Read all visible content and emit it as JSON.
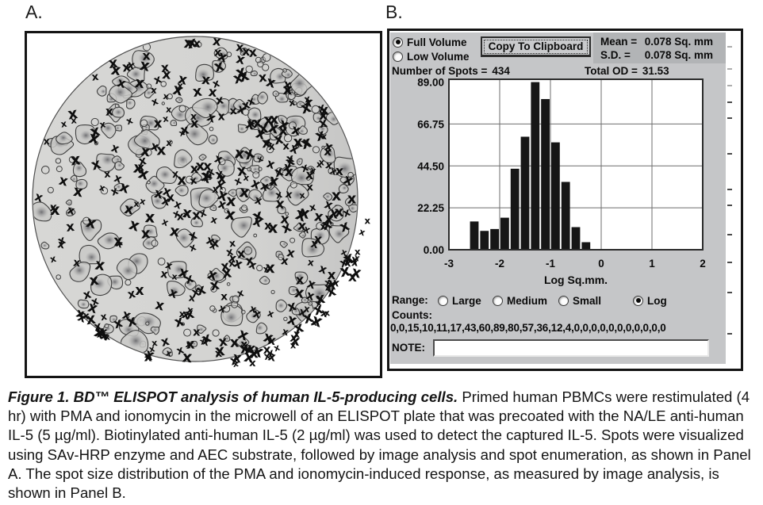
{
  "panels": {
    "a_label": "A.",
    "b_label": "B."
  },
  "panel_a": {
    "well": {
      "seed": 77,
      "blob_count": 175,
      "ring_count": 85,
      "xmark_count": 310,
      "edge_xmark_count": 48,
      "edge_xmark_left_count": 14,
      "circle_fill": "#d7d7d5",
      "circle_stroke": "#4f4f4f",
      "blob_fill": "#c9c9c7",
      "blob_stroke": "#3f3f3f",
      "core_color": "#5f5f63",
      "xmark_color": "#0e0e0e"
    }
  },
  "panel_b": {
    "dialog_bg": "#c5c6c8",
    "volume_radios": [
      {
        "label": "Full Volume",
        "selected": true
      },
      {
        "label": "Low Volume",
        "selected": false
      }
    ],
    "copy_button": "Copy To Clipboard",
    "stats": {
      "mean_label": "Mean =",
      "mean_value": "0.078 Sq. mm",
      "sd_label": "S.D. =",
      "sd_value": "0.078 Sq. mm"
    },
    "spots_label": "Number of Spots =",
    "spots_value": "434",
    "total_od_label": "Total OD =",
    "total_od_value": "31.53",
    "range_label": "Range:",
    "range_radios": [
      {
        "label": "Large",
        "selected": false,
        "x": 58
      },
      {
        "label": "Medium",
        "selected": false,
        "x": 127
      },
      {
        "label": "Small",
        "selected": false,
        "x": 210
      },
      {
        "label": "Log",
        "selected": true,
        "x": 304
      }
    ],
    "counts_label": "Counts:",
    "counts_display": "0,0,15,10,11,17,43,60,89,80,57,36,12,4,0,0,0,0,0,0,0,0,0,0,0",
    "note_label": "NOTE:",
    "note_value": "",
    "margin_ticks_y": [
      19,
      47,
      68,
      89,
      109,
      154,
      199,
      219,
      256,
      291,
      329,
      381
    ]
  },
  "chart_data": {
    "type": "bar",
    "title": "",
    "xlabel": "Log Sq.mm.",
    "ylabel": "",
    "xlim": [
      -3,
      2
    ],
    "ylim": [
      0,
      90.5
    ],
    "x_ticks": [
      "-3",
      "-2",
      "-1",
      "0",
      "1",
      "2"
    ],
    "y_ticks": [
      {
        "v": 0,
        "label": "0.00"
      },
      {
        "v": 22.25,
        "label": "22.25"
      },
      {
        "v": 44.5,
        "label": "44.50"
      },
      {
        "v": 66.75,
        "label": "66.75"
      },
      {
        "v": 89,
        "label": "89.00"
      }
    ],
    "grid": true,
    "bin_start": -3,
    "bin_width": 0.2,
    "counts": [
      0,
      0,
      15,
      10,
      11,
      17,
      43,
      60,
      89,
      80,
      57,
      36,
      12,
      4,
      0,
      0,
      0,
      0,
      0,
      0,
      0,
      0,
      0,
      0,
      0
    ],
    "bar_color": "#161616"
  },
  "caption": {
    "lead": "Figure 1. BD™ ELISPOT analysis of human IL-5-producing cells.",
    "body": " Primed human PBMCs were restimulated (4 hr) with PMA and ionomycin in the microwell of an ELISPOT plate that was precoated with the NA/LE anti-human IL-5 (5 µg/ml). Biotinylated anti-human IL-5 (2 µg/ml) was used to detect the captured IL-5. Spots were visualized using SAv-HRP enzyme and AEC substrate, followed by image analysis and spot enumeration, as shown in Panel A. The spot size distribution of the PMA and ionomycin-induced response, as measured by image analysis, is shown in Panel B."
  }
}
